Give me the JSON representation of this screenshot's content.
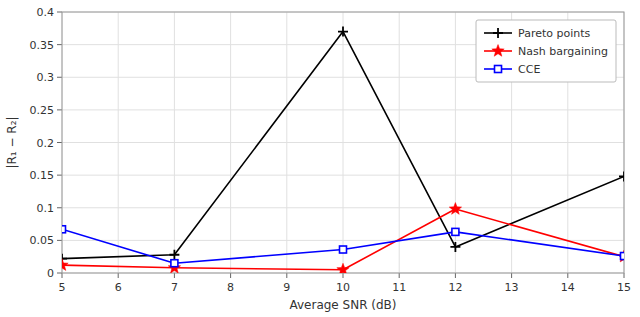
{
  "chart_data": {
    "type": "line",
    "x": [
      5,
      7,
      10,
      12,
      15
    ],
    "series": [
      {
        "name": "Pareto points",
        "color": "#000000",
        "marker": "plus",
        "values": [
          0.022,
          0.028,
          0.37,
          0.04,
          0.148
        ]
      },
      {
        "name": "Nash bargaining",
        "color": "#ff0000",
        "marker": "star",
        "values": [
          0.012,
          0.008,
          0.005,
          0.098,
          0.025
        ]
      },
      {
        "name": "CCE",
        "color": "#0000ff",
        "marker": "square",
        "values": [
          0.067,
          0.015,
          0.036,
          0.063,
          0.026
        ]
      }
    ],
    "xlabel": "Average SNR (dB)",
    "ylabel": "|R₁ − R₂|",
    "xlim": [
      5,
      15
    ],
    "ylim": [
      0,
      0.4
    ],
    "xticks": [
      5,
      6,
      7,
      8,
      9,
      10,
      11,
      12,
      13,
      14,
      15
    ],
    "yticks": [
      0,
      0.05,
      0.1,
      0.15,
      0.2,
      0.25,
      0.3,
      0.35,
      0.4
    ],
    "grid": true,
    "legend": "upper right"
  }
}
